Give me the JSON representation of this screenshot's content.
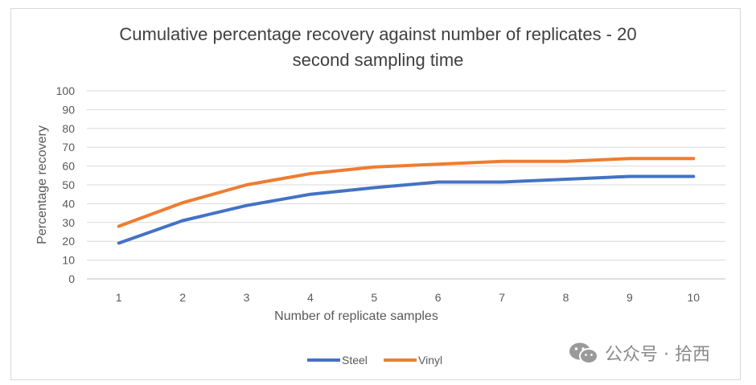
{
  "chart_data": {
    "type": "line",
    "title_lines": [
      "Cumulative percentage recovery against number of replicates - 20",
      "second sampling time"
    ],
    "xlabel": "Number of replicate samples",
    "ylabel": "Percentage recovery",
    "categories": [
      "1",
      "2",
      "3",
      "4",
      "5",
      "6",
      "7",
      "8",
      "9",
      "10"
    ],
    "ylim": [
      0,
      100
    ],
    "yticks": [
      0,
      10,
      20,
      30,
      40,
      50,
      60,
      70,
      80,
      90,
      100
    ],
    "grid": true,
    "legend_position": "bottom",
    "series": [
      {
        "name": "Steel",
        "color": "#4472c4",
        "values": [
          19,
          31,
          39,
          45,
          48.5,
          51.5,
          51.5,
          53,
          54.5,
          54.5
        ]
      },
      {
        "name": "Vinyl",
        "color": "#ed7d31",
        "values": [
          28,
          40.5,
          50,
          56,
          59.5,
          61,
          62.5,
          62.5,
          64,
          64
        ]
      }
    ]
  },
  "watermark": {
    "text": "公众号 · 拾西",
    "icon": "wechat-icon"
  }
}
